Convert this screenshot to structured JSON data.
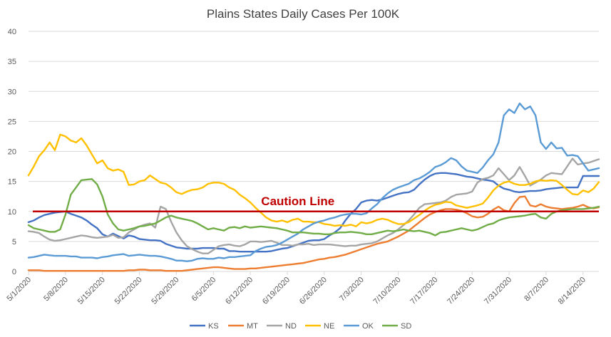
{
  "chart_data": {
    "type": "line",
    "title": "Plains States Daily Cases Per 100K",
    "xlabel": "",
    "ylabel": "",
    "ylim": [
      0,
      40
    ],
    "yticks": [
      "0",
      "5",
      "10",
      "15",
      "20",
      "25",
      "30",
      "35",
      "40"
    ],
    "grid": true,
    "legend_position": "bottom",
    "x": [
      "5/1/2020",
      "5/2/2020",
      "5/3/2020",
      "5/4/2020",
      "5/5/2020",
      "5/6/2020",
      "5/7/2020",
      "5/8/2020",
      "5/9/2020",
      "5/10/2020",
      "5/11/2020",
      "5/12/2020",
      "5/13/2020",
      "5/14/2020",
      "5/15/2020",
      "5/16/2020",
      "5/17/2020",
      "5/18/2020",
      "5/19/2020",
      "5/20/2020",
      "5/21/2020",
      "5/22/2020",
      "5/23/2020",
      "5/24/2020",
      "5/25/2020",
      "5/26/2020",
      "5/27/2020",
      "5/28/2020",
      "5/29/2020",
      "5/30/2020",
      "5/31/2020",
      "6/1/2020",
      "6/2/2020",
      "6/3/2020",
      "6/4/2020",
      "6/5/2020",
      "6/6/2020",
      "6/7/2020",
      "6/8/2020",
      "6/9/2020",
      "6/10/2020",
      "6/11/2020",
      "6/12/2020",
      "6/13/2020",
      "6/14/2020",
      "6/15/2020",
      "6/16/2020",
      "6/17/2020",
      "6/18/2020",
      "6/19/2020",
      "6/20/2020",
      "6/21/2020",
      "6/22/2020",
      "6/23/2020",
      "6/24/2020",
      "6/25/2020",
      "6/26/2020",
      "6/27/2020",
      "6/28/2020",
      "6/29/2020",
      "6/30/2020",
      "7/1/2020",
      "7/2/2020",
      "7/3/2020",
      "7/4/2020",
      "7/5/2020",
      "7/6/2020",
      "7/7/2020",
      "7/8/2020",
      "7/9/2020",
      "7/10/2020",
      "7/11/2020",
      "7/12/2020",
      "7/13/2020",
      "7/14/2020",
      "7/15/2020",
      "7/16/2020",
      "7/17/2020",
      "7/18/2020",
      "7/19/2020",
      "7/20/2020",
      "7/21/2020",
      "7/22/2020",
      "7/23/2020",
      "7/24/2020",
      "7/25/2020",
      "7/26/2020",
      "7/27/2020",
      "7/28/2020",
      "7/29/2020",
      "7/30/2020",
      "7/31/2020",
      "8/1/2020",
      "8/2/2020",
      "8/3/2020",
      "8/4/2020",
      "8/5/2020",
      "8/6/2020",
      "8/7/2020",
      "8/8/2020",
      "8/9/2020",
      "8/10/2020",
      "8/11/2020",
      "8/12/2020",
      "8/13/2020",
      "8/14/2020",
      "8/15/2020",
      "8/16/2020",
      "8/17/2020"
    ],
    "xtick_labels": [
      "5/1/2020",
      "5/8/2020",
      "5/15/2020",
      "5/22/2020",
      "5/29/2020",
      "6/5/2020",
      "6/12/2020",
      "6/19/2020",
      "6/26/2020",
      "7/3/2020",
      "7/10/2020",
      "7/17/2020",
      "7/24/2020",
      "7/31/2020",
      "8/7/2020",
      "8/14/2020"
    ],
    "xtick_every": 7,
    "series": [
      {
        "name": "KS",
        "color": "#4472c4",
        "values": [
          8.2,
          8.5,
          9.0,
          9.4,
          9.6,
          9.8,
          9.9,
          10.0,
          9.6,
          9.3,
          9.0,
          8.5,
          7.8,
          7.2,
          6.2,
          5.8,
          6.3,
          5.9,
          5.5,
          6.0,
          5.8,
          5.4,
          5.3,
          5.2,
          5.2,
          5.1,
          4.6,
          4.3,
          4.0,
          3.9,
          3.8,
          3.8,
          3.8,
          3.9,
          3.9,
          3.9,
          3.8,
          3.8,
          3.4,
          3.4,
          3.3,
          3.3,
          3.3,
          3.3,
          3.3,
          3.3,
          3.4,
          3.6,
          3.8,
          3.9,
          4.2,
          4.5,
          4.8,
          5.1,
          5.2,
          5.2,
          5.4,
          6.0,
          6.5,
          7.2,
          8.5,
          9.6,
          10.4,
          11.5,
          11.8,
          11.9,
          11.8,
          12.0,
          12.3,
          12.6,
          12.9,
          13.1,
          13.2,
          13.6,
          14.5,
          15.3,
          15.9,
          16.3,
          16.4,
          16.4,
          16.3,
          16.2,
          16.0,
          15.8,
          15.7,
          15.5,
          15.3,
          15.2,
          15.0,
          14.3,
          13.8,
          13.6,
          13.3,
          13.2,
          13.3,
          13.4,
          13.4,
          13.5,
          13.7,
          13.8,
          13.9,
          14.0,
          14.0,
          14.0,
          14.0,
          15.9,
          15.9,
          15.9,
          15.9
        ]
      },
      {
        "name": "MT",
        "color": "#ed7d31",
        "values": [
          0.2,
          0.2,
          0.2,
          0.1,
          0.1,
          0.1,
          0.1,
          0.1,
          0.1,
          0.1,
          0.1,
          0.1,
          0.1,
          0.1,
          0.1,
          0.1,
          0.1,
          0.1,
          0.1,
          0.2,
          0.2,
          0.3,
          0.3,
          0.2,
          0.2,
          0.2,
          0.1,
          0.1,
          0.1,
          0.1,
          0.2,
          0.3,
          0.4,
          0.5,
          0.6,
          0.7,
          0.7,
          0.6,
          0.5,
          0.4,
          0.4,
          0.4,
          0.5,
          0.5,
          0.6,
          0.7,
          0.8,
          0.9,
          1.0,
          1.1,
          1.2,
          1.3,
          1.4,
          1.6,
          1.8,
          2.0,
          2.1,
          2.3,
          2.4,
          2.6,
          2.8,
          3.1,
          3.4,
          3.7,
          4.0,
          4.3,
          4.6,
          4.8,
          5.0,
          5.4,
          5.8,
          6.3,
          6.8,
          7.5,
          8.2,
          8.9,
          9.5,
          9.9,
          10.2,
          10.4,
          10.4,
          10.3,
          10.1,
          9.7,
          9.2,
          9.0,
          9.1,
          9.6,
          10.3,
          10.8,
          10.2,
          10.0,
          11.4,
          12.4,
          12.5,
          11.0,
          10.8,
          11.2,
          10.8,
          10.6,
          10.5,
          10.4,
          10.5,
          10.6,
          10.8,
          11.1,
          10.7,
          10.5,
          10.7
        ]
      },
      {
        "name": "ND",
        "color": "#a5a5a5",
        "values": [
          6.7,
          6.6,
          6.4,
          5.8,
          5.3,
          5.1,
          5.2,
          5.4,
          5.6,
          5.8,
          6.0,
          5.9,
          5.7,
          5.6,
          5.7,
          5.8,
          6.1,
          5.6,
          5.7,
          6.5,
          7.0,
          7.5,
          7.8,
          8.0,
          7.3,
          10.8,
          10.4,
          8.3,
          6.5,
          5.2,
          4.2,
          3.7,
          3.3,
          3.0,
          3.0,
          3.6,
          4.2,
          4.4,
          4.5,
          4.3,
          4.2,
          4.5,
          5.0,
          5.0,
          4.9,
          5.0,
          5.1,
          4.8,
          4.4,
          4.4,
          4.3,
          4.5,
          4.5,
          4.6,
          4.4,
          4.5,
          4.5,
          4.5,
          4.4,
          4.3,
          4.2,
          4.3,
          4.3,
          4.5,
          4.6,
          4.7,
          5.0,
          5.5,
          6.0,
          6.4,
          7.0,
          7.7,
          8.5,
          9.5,
          10.6,
          11.2,
          11.3,
          11.4,
          11.5,
          11.8,
          12.4,
          12.8,
          12.9,
          13.0,
          13.3,
          14.8,
          15.4,
          15.6,
          16.0,
          17.2,
          16.2,
          15.2,
          16.0,
          17.4,
          15.9,
          14.3,
          14.8,
          15.3,
          16.0,
          16.4,
          16.3,
          16.2,
          17.5,
          18.8,
          17.8,
          18.0,
          18.1,
          18.4,
          18.7
        ]
      },
      {
        "name": "NE",
        "color": "#ffc000",
        "values": [
          16.0,
          17.5,
          19.2,
          20.2,
          21.5,
          20.2,
          22.8,
          22.5,
          21.8,
          21.5,
          22.2,
          21.0,
          19.5,
          18.0,
          18.5,
          17.2,
          16.8,
          17.0,
          16.6,
          14.4,
          14.5,
          15.0,
          15.2,
          16.0,
          15.4,
          14.8,
          14.6,
          14.0,
          13.2,
          12.9,
          13.3,
          13.6,
          13.7,
          14.0,
          14.6,
          14.8,
          14.8,
          14.6,
          14.0,
          13.6,
          12.8,
          12.2,
          11.5,
          10.6,
          9.8,
          9.0,
          8.5,
          8.3,
          8.5,
          8.2,
          8.6,
          8.8,
          8.3,
          8.3,
          8.2,
          8.2,
          7.9,
          7.8,
          7.6,
          7.7,
          7.6,
          7.8,
          7.5,
          8.2,
          8.0,
          8.2,
          8.6,
          8.8,
          8.6,
          8.2,
          7.9,
          7.9,
          8.2,
          8.8,
          9.4,
          10.1,
          10.7,
          11.1,
          11.3,
          11.6,
          11.5,
          11.0,
          10.8,
          10.6,
          10.8,
          11.0,
          11.3,
          12.3,
          13.5,
          14.3,
          14.8,
          15.0,
          14.6,
          14.4,
          14.4,
          14.6,
          15.0,
          15.2,
          15.1,
          15.2,
          15.1,
          14.4,
          13.6,
          12.9,
          12.8,
          13.5,
          13.2,
          13.8,
          14.9
        ]
      },
      {
        "name": "OK",
        "color": "#5b9bd5",
        "values": [
          2.3,
          2.4,
          2.6,
          2.8,
          2.7,
          2.6,
          2.6,
          2.6,
          2.5,
          2.5,
          2.3,
          2.3,
          2.3,
          2.2,
          2.4,
          2.5,
          2.7,
          2.8,
          2.9,
          2.6,
          2.7,
          2.8,
          2.7,
          2.6,
          2.6,
          2.5,
          2.3,
          2.1,
          1.8,
          1.8,
          1.7,
          1.8,
          2.1,
          2.2,
          2.1,
          2.1,
          2.3,
          2.2,
          2.4,
          2.4,
          2.5,
          2.6,
          2.7,
          3.4,
          3.8,
          4.1,
          4.2,
          4.4,
          4.8,
          5.3,
          5.8,
          6.3,
          7.0,
          7.5,
          8.0,
          8.3,
          8.5,
          8.8,
          9.0,
          9.3,
          9.5,
          9.6,
          9.6,
          9.5,
          9.7,
          10.5,
          11.2,
          12.2,
          13.0,
          13.6,
          14.0,
          14.3,
          14.6,
          15.2,
          15.5,
          16.0,
          16.6,
          17.4,
          17.7,
          18.2,
          18.9,
          18.5,
          17.5,
          16.8,
          16.6,
          16.4,
          17.3,
          18.5,
          19.5,
          21.5,
          26.0,
          27.0,
          26.4,
          28.0,
          27.0,
          27.5,
          26.0,
          21.5,
          20.4,
          21.5,
          20.5,
          20.6,
          19.3,
          19.4,
          19.2,
          18.0,
          16.8,
          17.0,
          17.2
        ]
      },
      {
        "name": "SD",
        "color": "#70ad47",
        "values": [
          7.7,
          7.2,
          7.0,
          6.8,
          6.6,
          6.6,
          7.0,
          9.5,
          12.8,
          14.0,
          15.2,
          15.3,
          15.4,
          14.5,
          12.5,
          9.5,
          8.0,
          7.0,
          6.8,
          7.0,
          7.2,
          7.5,
          7.6,
          7.8,
          8.0,
          8.5,
          9.0,
          9.3,
          9.0,
          8.8,
          8.6,
          8.4,
          8.0,
          7.5,
          7.0,
          7.2,
          7.0,
          6.8,
          7.3,
          7.4,
          7.2,
          7.5,
          7.3,
          7.4,
          7.5,
          7.4,
          7.3,
          7.2,
          7.0,
          6.8,
          6.5,
          6.5,
          6.5,
          6.4,
          6.3,
          6.3,
          6.2,
          6.2,
          6.4,
          6.5,
          6.5,
          6.6,
          6.5,
          6.4,
          6.2,
          6.2,
          6.4,
          6.6,
          6.8,
          6.7,
          6.8,
          7.0,
          6.8,
          6.7,
          6.8,
          6.6,
          6.4,
          6.0,
          6.5,
          6.6,
          6.8,
          7.0,
          7.2,
          7.0,
          6.8,
          7.0,
          7.4,
          7.8,
          8.0,
          8.5,
          8.8,
          9.0,
          9.1,
          9.2,
          9.3,
          9.5,
          9.6,
          9.0,
          8.8,
          9.6,
          10.0,
          10.2,
          10.3,
          10.4,
          10.4,
          10.4,
          10.5,
          10.6,
          10.8
        ]
      }
    ],
    "annotations": [
      {
        "type": "hline",
        "y": 10,
        "color": "#c00000",
        "label": "Caution Line",
        "label_x": "6/21/2020"
      }
    ]
  }
}
